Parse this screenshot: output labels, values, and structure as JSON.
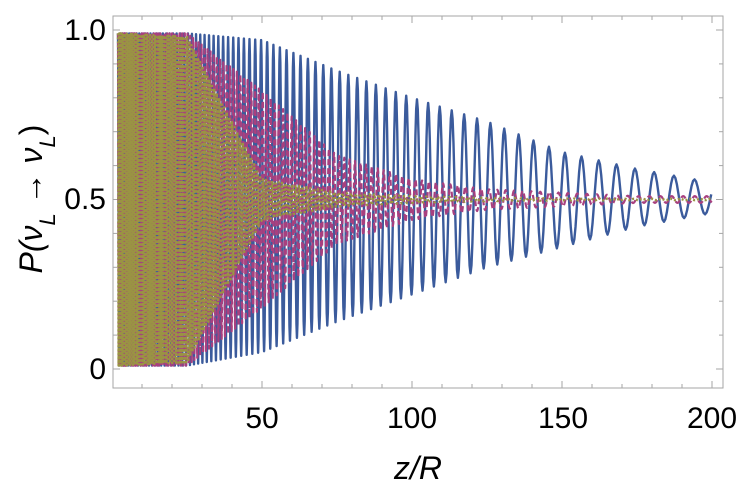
{
  "chart_data": {
    "type": "line",
    "title": "",
    "xlabel": "z/R",
    "ylabel": "P(νL → νL)",
    "xlim": [
      0,
      200
    ],
    "ylim": [
      0,
      1
    ],
    "x_ticks": [
      50,
      100,
      150,
      200
    ],
    "y_ticks": [
      0,
      0.5,
      1.0
    ],
    "x_tick_labels": [
      "50",
      "100",
      "150",
      "200"
    ],
    "y_tick_labels": [
      "0",
      "0.5",
      "1.0"
    ],
    "grid": false,
    "legend": "none",
    "series": [
      {
        "color": "#3b5b9c",
        "style": "solid",
        "x": [
          2,
          25,
          50,
          75,
          100,
          125,
          150,
          175,
          200
        ],
        "envelope_max": [
          0.99,
          0.99,
          0.97,
          0.88,
          0.8,
          0.73,
          0.64,
          0.59,
          0.55
        ],
        "envelope_min": [
          0.01,
          0.01,
          0.05,
          0.14,
          0.22,
          0.3,
          0.36,
          0.42,
          0.46
        ],
        "oscillation_period": [
          0.7,
          1.3,
          2.0,
          2.8,
          3.6,
          4.5,
          5.4,
          6.3,
          7.2
        ]
      },
      {
        "color": "#a8407f",
        "style": "dashed",
        "x": [
          2,
          25,
          50,
          75,
          100,
          125,
          150,
          175,
          200
        ],
        "envelope_max": [
          0.99,
          0.99,
          0.82,
          0.63,
          0.56,
          0.53,
          0.52,
          0.51,
          0.51
        ],
        "envelope_min": [
          0.01,
          0.01,
          0.18,
          0.37,
          0.44,
          0.47,
          0.48,
          0.49,
          0.49
        ],
        "oscillation_period": [
          0.5,
          0.9,
          1.3,
          1.7,
          2.2,
          2.7,
          3.1,
          3.6,
          4.0
        ]
      },
      {
        "color": "#9a9343",
        "style": "dotted",
        "x": [
          2,
          25,
          50,
          75,
          100,
          125,
          150,
          175,
          200
        ],
        "envelope_max": [
          0.99,
          0.98,
          0.56,
          0.52,
          0.51,
          0.505,
          0.503,
          0.502,
          0.502
        ],
        "envelope_min": [
          0.01,
          0.02,
          0.44,
          0.48,
          0.49,
          0.495,
          0.497,
          0.498,
          0.498
        ],
        "oscillation_period": [
          0.4,
          0.7,
          1.0,
          1.4,
          1.8,
          2.2,
          2.6,
          3.0,
          3.4
        ]
      }
    ]
  }
}
